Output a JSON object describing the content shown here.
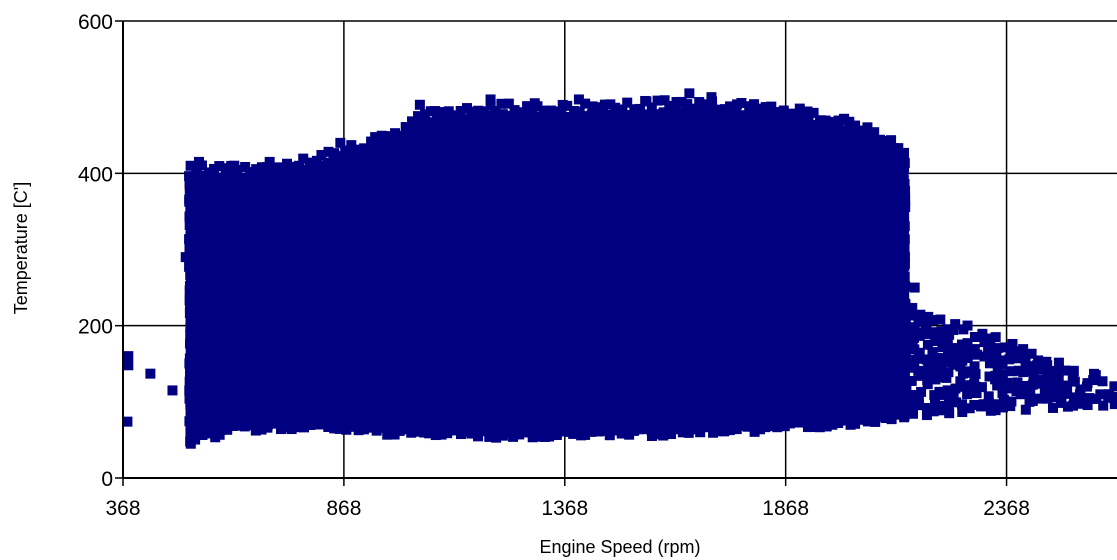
{
  "chart_data": {
    "type": "scatter",
    "title": "",
    "xlabel": "Engine Speed (rpm)",
    "ylabel": "Temperature [C']",
    "xlim": [
      368,
      2618
    ],
    "ylim": [
      0,
      600
    ],
    "x_ticks": [
      368,
      868,
      1368,
      1868,
      2368
    ],
    "y_ticks": [
      0,
      200,
      400,
      600
    ],
    "grid": true,
    "legend": "none",
    "marker": "square",
    "series": [
      {
        "color": "#000080",
        "dense_region": {
          "x_range": [
            520,
            2140
          ],
          "lower_temp": [
            [
              520,
              55
            ],
            [
              620,
              70
            ],
            [
              800,
              75
            ],
            [
              1000,
              65
            ],
            [
              1200,
              62
            ],
            [
              1400,
              62
            ],
            [
              1600,
              65
            ],
            [
              1800,
              70
            ],
            [
              2000,
              78
            ],
            [
              2140,
              85
            ]
          ],
          "upper_temp": [
            [
              520,
              400
            ],
            [
              700,
              400
            ],
            [
              860,
              420
            ],
            [
              1000,
              450
            ],
            [
              1040,
              470
            ],
            [
              1200,
              480
            ],
            [
              1400,
              480
            ],
            [
              1600,
              485
            ],
            [
              1860,
              480
            ],
            [
              2000,
              460
            ],
            [
              2100,
              440
            ],
            [
              2140,
              420
            ]
          ]
        },
        "points": [
          {
            "x": 380,
            "y": 160
          },
          {
            "x": 380,
            "y": 148
          },
          {
            "x": 378,
            "y": 74
          },
          {
            "x": 430,
            "y": 137
          },
          {
            "x": 480,
            "y": 115
          },
          {
            "x": 510,
            "y": 290
          },
          {
            "x": 520,
            "y": 48
          },
          {
            "x": 540,
            "y": 415
          },
          {
            "x": 620,
            "y": 410
          },
          {
            "x": 700,
            "y": 415
          },
          {
            "x": 860,
            "y": 440
          },
          {
            "x": 1040,
            "y": 490
          },
          {
            "x": 1200,
            "y": 497
          },
          {
            "x": 1300,
            "y": 492
          },
          {
            "x": 1400,
            "y": 497
          },
          {
            "x": 1550,
            "y": 495
          },
          {
            "x": 1650,
            "y": 505
          },
          {
            "x": 1700,
            "y": 500
          },
          {
            "x": 1900,
            "y": 485
          },
          {
            "x": 2000,
            "y": 470
          },
          {
            "x": 2080,
            "y": 440
          },
          {
            "x": 2160,
            "y": 250
          },
          {
            "x": 2160,
            "y": 198
          },
          {
            "x": 2190,
            "y": 175
          },
          {
            "x": 2250,
            "y": 160
          },
          {
            "x": 2280,
            "y": 140
          },
          {
            "x": 2340,
            "y": 160
          },
          {
            "x": 2370,
            "y": 125
          },
          {
            "x": 2400,
            "y": 110
          },
          {
            "x": 2420,
            "y": 100
          },
          {
            "x": 2460,
            "y": 148
          },
          {
            "x": 2480,
            "y": 115
          },
          {
            "x": 2520,
            "y": 140
          },
          {
            "x": 2550,
            "y": 120
          },
          {
            "x": 2570,
            "y": 135
          },
          {
            "x": 2600,
            "y": 110
          },
          {
            "x": 2610,
            "y": 105
          }
        ],
        "tail_band": {
          "x_range": [
            2140,
            2618
          ],
          "start": [
            85,
            230
          ],
          "end": [
            100,
            125
          ]
        }
      }
    ]
  }
}
